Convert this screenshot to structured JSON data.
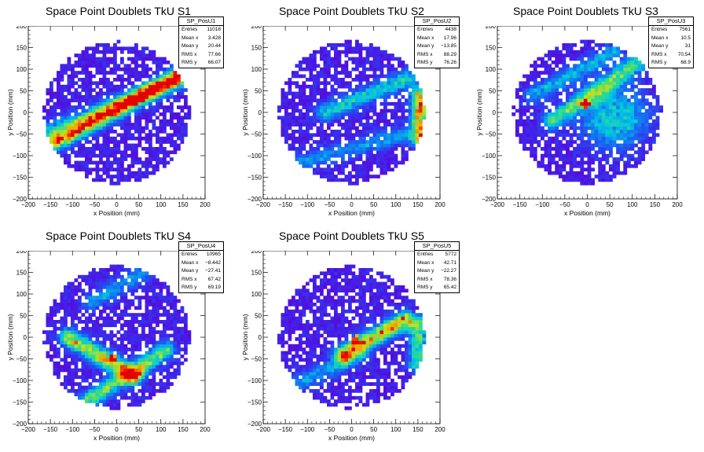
{
  "chart_data": [
    {
      "type": "heatmap",
      "title": "Space Point Doublets TkU S1",
      "histogram": "SP_PosU1",
      "xlabel": "x Position (mm)",
      "ylabel": "y Position (mm)",
      "xlim": [
        -200,
        200
      ],
      "ylim": [
        -200,
        200
      ],
      "xticks": [
        "−200",
        "−150",
        "−100",
        "−50",
        "0",
        "50",
        "100",
        "150",
        "200"
      ],
      "yticks": [
        "200",
        "150",
        "100",
        "50",
        "0",
        "−50",
        "−100",
        "−150",
        "−200"
      ],
      "stats": [
        {
          "label": "Entries",
          "value": "11018"
        },
        {
          "label": "Mean x",
          "value": "3.428"
        },
        {
          "label": "Mean y",
          "value": "20.44"
        },
        {
          "label": "RMS x",
          "value": "77.66"
        },
        {
          "label": "RMS y",
          "value": "66.07"
        }
      ],
      "features": [
        {
          "kind": "band",
          "x1": -160,
          "y1": -80,
          "x2": 170,
          "y2": 100,
          "peak": 0.9,
          "hot": [
            [
              20,
              20
            ],
            [
              40,
              25
            ]
          ]
        },
        {
          "kind": "band",
          "x1": -150,
          "y1": -40,
          "x2": 150,
          "y2": 80,
          "peak": 0.35
        }
      ]
    },
    {
      "type": "heatmap",
      "title": "Space Point Doublets TkU S2",
      "histogram": "SP_PosU2",
      "xlabel": "x Position (mm)",
      "ylabel": "y Position (mm)",
      "xlim": [
        -200,
        200
      ],
      "ylim": [
        -200,
        200
      ],
      "xticks": [
        "−200",
        "−150",
        "−100",
        "−50",
        "0",
        "50",
        "100",
        "150",
        "200"
      ],
      "yticks": [
        "200",
        "150",
        "100",
        "50",
        "0",
        "−50",
        "−100",
        "−150",
        "−200"
      ],
      "stats": [
        {
          "label": "Entries",
          "value": "4438"
        },
        {
          "label": "Mean x",
          "value": "17.96"
        },
        {
          "label": "Mean y",
          "value": "−13.85"
        },
        {
          "label": "RMS x",
          "value": "88.29"
        },
        {
          "label": "RMS y",
          "value": "76.26"
        }
      ],
      "features": [
        {
          "kind": "band",
          "x1": -60,
          "y1": 0,
          "x2": 130,
          "y2": 80,
          "peak": 0.45
        },
        {
          "kind": "band",
          "x1": -130,
          "y1": -120,
          "x2": 120,
          "y2": -50,
          "peak": 0.3
        },
        {
          "kind": "vband",
          "x": 155,
          "y1": -60,
          "y2": 40,
          "peak": 0.85
        }
      ]
    },
    {
      "type": "heatmap",
      "title": "Space Point Doublets TkU S3",
      "histogram": "SP_PosU3",
      "xlabel": "x Position (mm)",
      "ylabel": "y Position (mm)",
      "xlim": [
        -200,
        200
      ],
      "ylim": [
        -200,
        200
      ],
      "xticks": [
        "−200",
        "−150",
        "−100",
        "−50",
        "0",
        "50",
        "100",
        "150",
        "200"
      ],
      "yticks": [
        "200",
        "150",
        "100",
        "50",
        "0",
        "−50",
        "−100",
        "−150",
        "−200"
      ],
      "stats": [
        {
          "label": "Entries",
          "value": "7561"
        },
        {
          "label": "Mean x",
          "value": "10.5"
        },
        {
          "label": "Mean y",
          "value": "31"
        },
        {
          "label": "RMS x",
          "value": "70.54"
        },
        {
          "label": "RMS y",
          "value": "68.9"
        }
      ],
      "features": [
        {
          "kind": "band",
          "x1": -80,
          "y1": -20,
          "x2": 120,
          "y2": 120,
          "peak": 0.55,
          "hot": [
            [
              -5,
              20
            ]
          ]
        },
        {
          "kind": "band",
          "x1": -120,
          "y1": 40,
          "x2": 60,
          "y2": 140,
          "peak": 0.35
        },
        {
          "kind": "blob",
          "x": 60,
          "y": -10,
          "r": 40,
          "peak": 0.4
        }
      ]
    },
    {
      "type": "heatmap",
      "title": "Space Point Doublets TkU S4",
      "histogram": "SP_PosU4",
      "xlabel": "x Position (mm)",
      "ylabel": "y Position (mm)",
      "xlim": [
        -200,
        200
      ],
      "ylim": [
        -200,
        200
      ],
      "xticks": [
        "−200",
        "−150",
        "−100",
        "−50",
        "0",
        "50",
        "100",
        "150",
        "200"
      ],
      "yticks": [
        "200",
        "150",
        "100",
        "50",
        "0",
        "−50",
        "−100",
        "−150",
        "−200"
      ],
      "stats": [
        {
          "label": "Entries",
          "value": "10965"
        },
        {
          "label": "Mean x",
          "value": "−8.442"
        },
        {
          "label": "Mean y",
          "value": "−27.41"
        },
        {
          "label": "RMS x",
          "value": "67.42"
        },
        {
          "label": "RMS y",
          "value": "69.19"
        }
      ],
      "features": [
        {
          "kind": "band",
          "x1": -110,
          "y1": 0,
          "x2": 40,
          "y2": -90,
          "peak": 0.75,
          "hot": [
            [
              -10,
              -50
            ]
          ]
        },
        {
          "kind": "band",
          "x1": -70,
          "y1": -150,
          "x2": 110,
          "y2": -30,
          "peak": 0.6
        },
        {
          "kind": "band",
          "x1": -60,
          "y1": 80,
          "x2": 60,
          "y2": 150,
          "peak": 0.3
        }
      ]
    },
    {
      "type": "heatmap",
      "title": "Space Point Doublets TkU S5",
      "histogram": "SP_PosU5",
      "xlabel": "x Position (mm)",
      "ylabel": "y Position (mm)",
      "xlim": [
        -200,
        200
      ],
      "ylim": [
        -200,
        200
      ],
      "xticks": [
        "−200",
        "−150",
        "−100",
        "−50",
        "0",
        "50",
        "100",
        "150",
        "200"
      ],
      "yticks": [
        "200",
        "150",
        "100",
        "50",
        "0",
        "−50",
        "−100",
        "−150",
        "−200"
      ],
      "stats": [
        {
          "label": "Entries",
          "value": "5772"
        },
        {
          "label": "Mean x",
          "value": "42.71"
        },
        {
          "label": "Mean y",
          "value": "−22.27"
        },
        {
          "label": "RMS x",
          "value": "78.36"
        },
        {
          "label": "RMS y",
          "value": "65.42"
        }
      ],
      "features": [
        {
          "kind": "band",
          "x1": -20,
          "y1": -40,
          "x2": 120,
          "y2": 40,
          "peak": 0.85,
          "hot": [
            [
              10,
              -5
            ]
          ]
        },
        {
          "kind": "vband",
          "x": 150,
          "y1": -60,
          "y2": 30,
          "peak": 0.55
        },
        {
          "kind": "band",
          "x1": -130,
          "y1": -110,
          "x2": 20,
          "y2": -40,
          "peak": 0.3
        }
      ]
    }
  ]
}
